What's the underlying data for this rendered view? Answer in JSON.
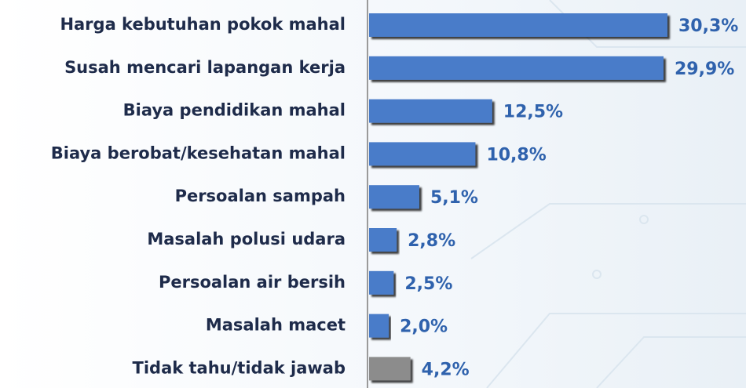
{
  "chart_data": {
    "type": "hbar",
    "categories": [
      "Harga kebutuhan pokok mahal",
      "Susah mencari lapangan kerja",
      "Biaya pendidikan mahal",
      "Biaya berobat/kesehatan mahal",
      "Persoalan sampah",
      "Masalah polusi udara",
      "Persoalan air bersih",
      "Masalah macet",
      "Tidak tahu/tidak jawab"
    ],
    "values": [
      30.3,
      29.9,
      12.5,
      10.8,
      5.1,
      2.8,
      2.5,
      2.0,
      4.2
    ],
    "value_labels": [
      "30,3%",
      "29,9%",
      "12,5%",
      "10,8%",
      "5,1%",
      "2,8%",
      "2,5%",
      "2,0%",
      "4,2%"
    ],
    "colors": [
      "#4a7cc9",
      "#4a7cc9",
      "#4a7cc9",
      "#4a7cc9",
      "#4a7cc9",
      "#4a7cc9",
      "#4a7cc9",
      "#4a7cc9",
      "#8c8c8c"
    ]
  }
}
